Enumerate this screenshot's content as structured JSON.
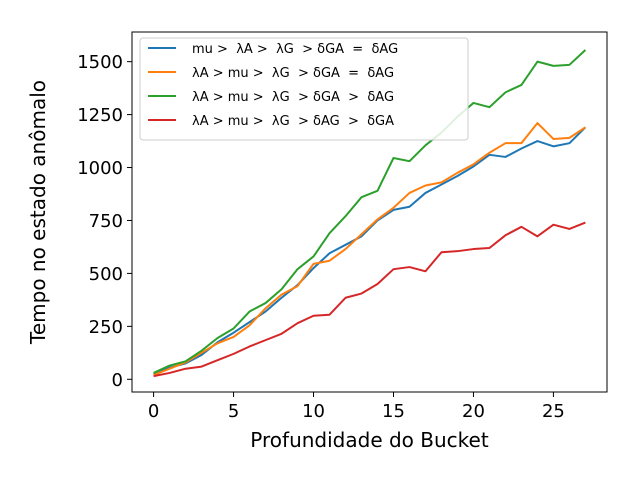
{
  "chart_data": {
    "type": "line",
    "title": "",
    "xlabel": "Profundidade do Bucket",
    "ylabel": "Tempo no estado anômalo",
    "xlim": [
      -1.35,
      28.35
    ],
    "ylim": [
      -60,
      1640
    ],
    "x_ticks": [
      0,
      5,
      10,
      15,
      20,
      25
    ],
    "y_ticks": [
      0,
      250,
      500,
      750,
      1000,
      1250,
      1500
    ],
    "x_tick_labels": [
      "0",
      "5",
      "10",
      "15",
      "20",
      "25"
    ],
    "y_tick_labels": [
      "0",
      "250",
      "500",
      "750",
      "1000",
      "1250",
      "1500"
    ],
    "grid": false,
    "legend_position": "upper-left",
    "x": [
      0,
      1,
      2,
      3,
      4,
      5,
      6,
      7,
      8,
      9,
      10,
      11,
      12,
      13,
      14,
      15,
      16,
      17,
      18,
      19,
      20,
      21,
      22,
      23,
      24,
      25,
      26,
      27
    ],
    "series": [
      {
        "name": "mu >  λA >  λG  > δGA  =  δAG",
        "color": "#1f77b4",
        "values": [
          25,
          55,
          75,
          115,
          175,
          220,
          270,
          320,
          385,
          445,
          525,
          595,
          635,
          675,
          750,
          800,
          815,
          880,
          920,
          960,
          1005,
          1060,
          1050,
          1090,
          1125,
          1100,
          1115,
          1190
        ]
      },
      {
        "name": "λA > mu >  λG  > δGA  =  δAG",
        "color": "#ff7f0e",
        "values": [
          20,
          50,
          80,
          125,
          170,
          200,
          255,
          335,
          400,
          440,
          545,
          560,
          615,
          685,
          755,
          810,
          880,
          915,
          930,
          975,
          1015,
          1070,
          1115,
          1115,
          1210,
          1135,
          1140,
          1190
        ]
      },
      {
        "name": "λA > mu >  λG  > δGA  >  δAG",
        "color": "#2ca02c",
        "values": [
          30,
          65,
          85,
          135,
          195,
          240,
          320,
          360,
          425,
          520,
          580,
          690,
          770,
          860,
          890,
          1045,
          1030,
          1105,
          1165,
          1240,
          1305,
          1285,
          1355,
          1390,
          1500,
          1480,
          1485,
          1555
        ]
      },
      {
        "name": "λA > mu >  λG  > δAG  >  δGA",
        "color": "#d62728",
        "values": [
          15,
          30,
          50,
          60,
          90,
          120,
          155,
          185,
          215,
          265,
          300,
          305,
          385,
          405,
          450,
          520,
          530,
          510,
          600,
          605,
          615,
          620,
          680,
          720,
          675,
          730,
          710,
          740
        ]
      }
    ]
  }
}
